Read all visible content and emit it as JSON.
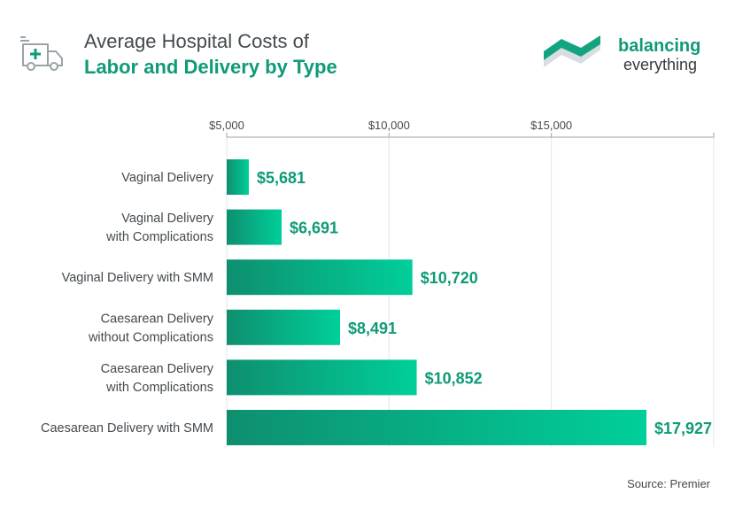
{
  "header": {
    "title_line1": "Average Hospital Costs of",
    "title_line2": "Labor and Delivery by Type",
    "icon": "ambulance-icon"
  },
  "logo": {
    "line1": "balancing",
    "line2": "everything",
    "icon": "balancing-everything-logo-mark"
  },
  "colors": {
    "accent": "#0f9a78",
    "bar_start": "#0e8f6f",
    "bar_end": "#00cf9a",
    "text": "#444a4f",
    "grid": "#e3e6e8"
  },
  "chart_data": {
    "type": "bar",
    "orientation": "horizontal",
    "categories": [
      [
        "Vaginal Delivery"
      ],
      [
        "Vaginal Delivery",
        "with Complications"
      ],
      [
        "Vaginal Delivery with SMM"
      ],
      [
        "Caesarean Delivery",
        "without Complications"
      ],
      [
        "Caesarean Delivery",
        "with Complications"
      ],
      [
        "Caesarean Delivery with SMM"
      ]
    ],
    "values": [
      5681,
      6691,
      10720,
      8491,
      10852,
      17927
    ],
    "value_labels": [
      "$5,681",
      "$6,691",
      "$10,720",
      "$8,491",
      "$10,852",
      "$17,927"
    ],
    "x_ticks": [
      5000,
      10000,
      15000
    ],
    "x_tick_labels": [
      "$5,000",
      "$10,000",
      "$15,000"
    ],
    "xlim": [
      5000,
      20000
    ],
    "grid": true,
    "axis_position": "top"
  },
  "source": "Source: Premier"
}
